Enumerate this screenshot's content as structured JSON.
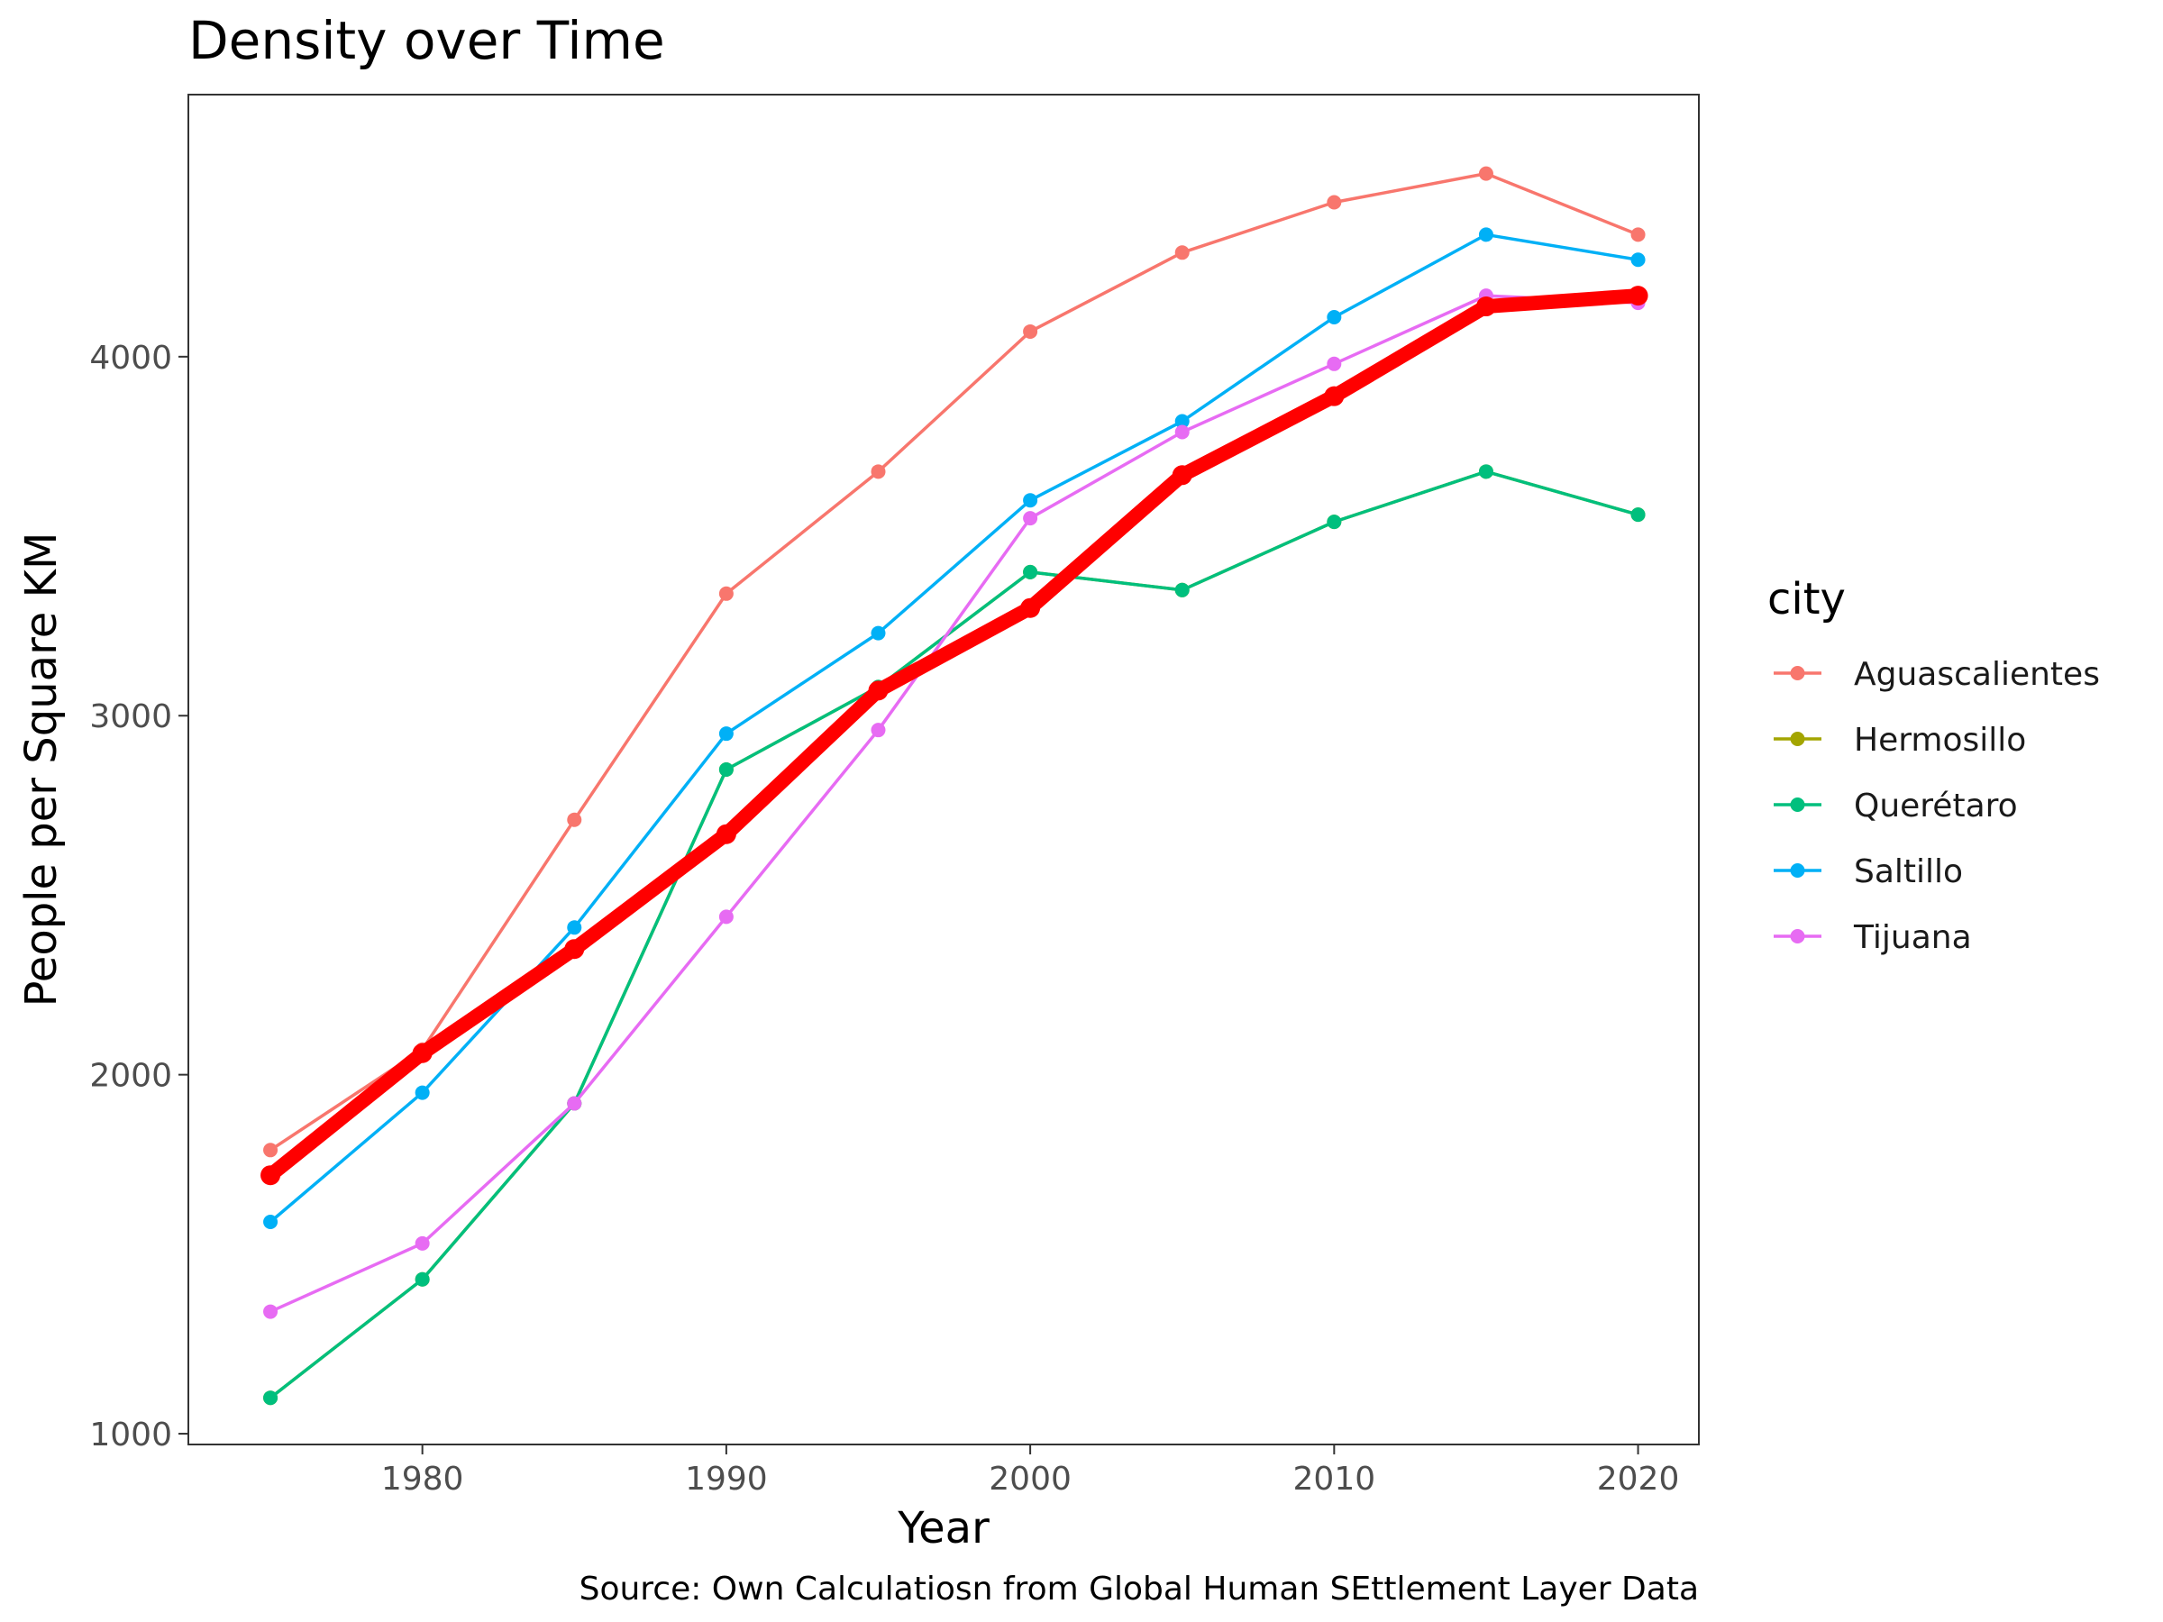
{
  "chart_data": {
    "type": "line",
    "title": "Density over Time",
    "xlabel": "Year",
    "ylabel": "People per Square KM",
    "caption": "Source: Own Calculatiosn from Global Human SEttlement Layer Data",
    "x": [
      1975,
      1980,
      1985,
      1990,
      1995,
      2000,
      2005,
      2010,
      2015,
      2020
    ],
    "xlim": [
      1972.3,
      2022.0
    ],
    "ylim": [
      970,
      4730
    ],
    "x_ticks": [
      1980,
      1990,
      2000,
      2010,
      2020
    ],
    "x_tick_labels": [
      "1980",
      "1990",
      "2000",
      "2010",
      "2020"
    ],
    "y_ticks": [
      1000,
      2000,
      3000,
      4000
    ],
    "y_tick_labels": [
      "1000",
      "2000",
      "3000",
      "4000"
    ],
    "grid": false,
    "legend": {
      "title": "city",
      "position": "right",
      "entries": [
        "Aguascalientes",
        "Hermosillo",
        "Querétaro",
        "Saltillo",
        "Tijuana"
      ]
    },
    "series": [
      {
        "name": "Aguascalientes",
        "color": "#F8766D",
        "values": [
          1790,
          2070,
          2710,
          3340,
          3680,
          4070,
          4290,
          4430,
          4510,
          4340
        ]
      },
      {
        "name": "Hermosillo",
        "color": "#A3A500",
        "values": [
          1100,
          1430,
          1920,
          2850,
          3080,
          3400,
          3350,
          3540,
          3680,
          3560
        ]
      },
      {
        "name": "Querétaro",
        "color": "#00BF7D",
        "values": [
          1100,
          1430,
          1920,
          2850,
          3080,
          3400,
          3350,
          3540,
          3680,
          3560
        ]
      },
      {
        "name": "Saltillo",
        "color": "#00B0F6",
        "values": [
          1590,
          1950,
          2410,
          2950,
          3230,
          3600,
          3820,
          4110,
          4340,
          4270
        ]
      },
      {
        "name": "Tijuana",
        "color": "#E76BF3",
        "values": [
          1340,
          1530,
          1920,
          2440,
          2960,
          3550,
          3790,
          3980,
          4170,
          4150
        ]
      }
    ],
    "highlight_series": {
      "color": "#FF0000",
      "values": [
        1720,
        2060,
        2350,
        2670,
        3070,
        3300,
        3670,
        3890,
        4140,
        4170
      ]
    }
  }
}
